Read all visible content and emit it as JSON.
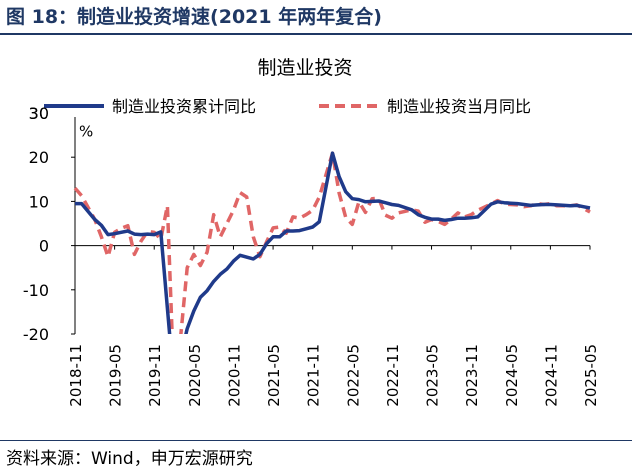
{
  "figure_title": "图 18：制造业投资增速(2021 年两年复合)",
  "source": "资料来源：Wind，申万宏源研究",
  "colors": {
    "cumulative": "#1f3a8a",
    "monthly": "#e06666",
    "title": "#1f3864"
  },
  "chart_data": {
    "type": "line",
    "title": "制造业投资",
    "unit_label": "%",
    "ylim": [
      -20,
      30
    ],
    "yticks": [
      -20,
      -10,
      0,
      10,
      20,
      30
    ],
    "xlim": [
      "2018-11",
      "2025-05"
    ],
    "xtick_labels": [
      "2018-11",
      "2019-05",
      "2019-11",
      "2020-05",
      "2020-11",
      "2021-05",
      "2021-11",
      "2022-05",
      "2022-11",
      "2023-05",
      "2023-11",
      "2024-05",
      "2024-11",
      "2025-05"
    ],
    "legend_position": "top",
    "series": [
      {
        "name": "制造业投资累计同比",
        "style": "solid",
        "points": [
          [
            "2018-11",
            9.5
          ],
          [
            "2018-12",
            9.5
          ],
          [
            "2019-02",
            5.9
          ],
          [
            "2019-03",
            4.6
          ],
          [
            "2019-04",
            2.5
          ],
          [
            "2019-05",
            2.7
          ],
          [
            "2019-06",
            3.0
          ],
          [
            "2019-07",
            3.3
          ],
          [
            "2019-08",
            2.6
          ],
          [
            "2019-09",
            2.5
          ],
          [
            "2019-10",
            2.6
          ],
          [
            "2019-11",
            2.5
          ],
          [
            "2019-12",
            3.1
          ],
          [
            "2020-02",
            -31.5
          ],
          [
            "2020-03",
            -25.2
          ],
          [
            "2020-04",
            -18.8
          ],
          [
            "2020-05",
            -14.8
          ],
          [
            "2020-06",
            -11.7
          ],
          [
            "2020-07",
            -10.2
          ],
          [
            "2020-08",
            -8.1
          ],
          [
            "2020-09",
            -6.5
          ],
          [
            "2020-10",
            -5.3
          ],
          [
            "2020-11",
            -3.5
          ],
          [
            "2020-12",
            -2.2
          ],
          [
            "2021-02",
            -3.0
          ],
          [
            "2021-03",
            -2.0
          ],
          [
            "2021-04",
            0.4
          ],
          [
            "2021-05",
            2.0
          ],
          [
            "2021-06",
            2.0
          ],
          [
            "2021-07",
            3.3
          ],
          [
            "2021-08",
            3.3
          ],
          [
            "2021-09",
            3.4
          ],
          [
            "2021-10",
            3.8
          ],
          [
            "2021-11",
            4.2
          ],
          [
            "2021-12",
            5.4
          ],
          [
            "2022-02",
            20.9
          ],
          [
            "2022-03",
            15.6
          ],
          [
            "2022-04",
            12.2
          ],
          [
            "2022-05",
            10.6
          ],
          [
            "2022-06",
            10.4
          ],
          [
            "2022-07",
            9.9
          ],
          [
            "2022-08",
            10.0
          ],
          [
            "2022-09",
            10.1
          ],
          [
            "2022-10",
            9.7
          ],
          [
            "2022-11",
            9.3
          ],
          [
            "2022-12",
            9.1
          ],
          [
            "2023-02",
            8.1
          ],
          [
            "2023-03",
            7.0
          ],
          [
            "2023-04",
            6.4
          ],
          [
            "2023-05",
            6.0
          ],
          [
            "2023-06",
            6.0
          ],
          [
            "2023-07",
            5.7
          ],
          [
            "2023-08",
            5.9
          ],
          [
            "2023-09",
            6.2
          ],
          [
            "2023-10",
            6.2
          ],
          [
            "2023-11",
            6.3
          ],
          [
            "2023-12",
            6.5
          ],
          [
            "2024-02",
            9.4
          ],
          [
            "2024-03",
            9.9
          ],
          [
            "2024-04",
            9.7
          ],
          [
            "2024-05",
            9.6
          ],
          [
            "2024-06",
            9.5
          ],
          [
            "2024-07",
            9.3
          ],
          [
            "2024-08",
            9.1
          ],
          [
            "2024-09",
            9.2
          ],
          [
            "2024-10",
            9.3
          ],
          [
            "2024-11",
            9.3
          ],
          [
            "2024-12",
            9.2
          ],
          [
            "2025-02",
            9.0
          ],
          [
            "2025-03",
            9.1
          ],
          [
            "2025-04",
            8.8
          ],
          [
            "2025-05",
            8.5
          ]
        ]
      },
      {
        "name": "制造业投资当月同比",
        "style": "dashed",
        "points": [
          [
            "2018-11",
            13.0
          ],
          [
            "2018-12",
            11.3
          ],
          [
            "2019-02",
            5.9
          ],
          [
            "2019-03",
            2.0
          ],
          [
            "2019-04",
            -2.5
          ],
          [
            "2019-05",
            3.0
          ],
          [
            "2019-06",
            3.9
          ],
          [
            "2019-07",
            4.5
          ],
          [
            "2019-08",
            -2.0
          ],
          [
            "2019-09",
            1.0
          ],
          [
            "2019-10",
            3.2
          ],
          [
            "2019-11",
            3.0
          ],
          [
            "2019-12",
            1.5
          ],
          [
            "2020-01",
            9.0
          ],
          [
            "2020-02",
            -31.5
          ],
          [
            "2020-03",
            -20.7
          ],
          [
            "2020-04",
            -5.0
          ],
          [
            "2020-05",
            -2.0
          ],
          [
            "2020-06",
            -4.5
          ],
          [
            "2020-07",
            -1.5
          ],
          [
            "2020-08",
            7.0
          ],
          [
            "2020-09",
            2.0
          ],
          [
            "2020-10",
            5.0
          ],
          [
            "2020-11",
            8.0
          ],
          [
            "2020-12",
            12.0
          ],
          [
            "2021-01",
            11.0
          ],
          [
            "2021-02",
            2.0
          ],
          [
            "2021-03",
            -2.5
          ],
          [
            "2021-04",
            0.8
          ],
          [
            "2021-05",
            4.0
          ],
          [
            "2021-06",
            4.2
          ],
          [
            "2021-07",
            2.8
          ],
          [
            "2021-08",
            6.5
          ],
          [
            "2021-09",
            6.2
          ],
          [
            "2021-10",
            7.0
          ],
          [
            "2021-11",
            8.0
          ],
          [
            "2021-12",
            11.0
          ],
          [
            "2022-02",
            20.9
          ],
          [
            "2022-03",
            11.9
          ],
          [
            "2022-04",
            6.4
          ],
          [
            "2022-05",
            4.8
          ],
          [
            "2022-06",
            9.9
          ],
          [
            "2022-07",
            7.5
          ],
          [
            "2022-08",
            10.6
          ],
          [
            "2022-09",
            10.7
          ],
          [
            "2022-10",
            6.9
          ],
          [
            "2022-11",
            6.2
          ],
          [
            "2022-12",
            7.4
          ],
          [
            "2023-02",
            8.1
          ],
          [
            "2023-03",
            7.8
          ],
          [
            "2023-04",
            5.3
          ],
          [
            "2023-05",
            5.9
          ],
          [
            "2023-06",
            5.5
          ],
          [
            "2023-07",
            4.8
          ],
          [
            "2023-08",
            6.0
          ],
          [
            "2023-09",
            7.4
          ],
          [
            "2023-10",
            6.5
          ],
          [
            "2023-11",
            7.0
          ],
          [
            "2023-12",
            8.0
          ],
          [
            "2024-02",
            9.4
          ],
          [
            "2024-03",
            10.2
          ],
          [
            "2024-04",
            9.4
          ],
          [
            "2024-05",
            9.3
          ],
          [
            "2024-06",
            9.2
          ],
          [
            "2024-07",
            8.8
          ],
          [
            "2024-08",
            9.0
          ],
          [
            "2024-09",
            9.5
          ],
          [
            "2024-10",
            9.3
          ],
          [
            "2024-11",
            9.5
          ],
          [
            "2024-12",
            9.0
          ],
          [
            "2025-02",
            9.0
          ],
          [
            "2025-03",
            9.2
          ],
          [
            "2025-04",
            8.4
          ],
          [
            "2025-05",
            7.6
          ]
        ]
      }
    ]
  }
}
